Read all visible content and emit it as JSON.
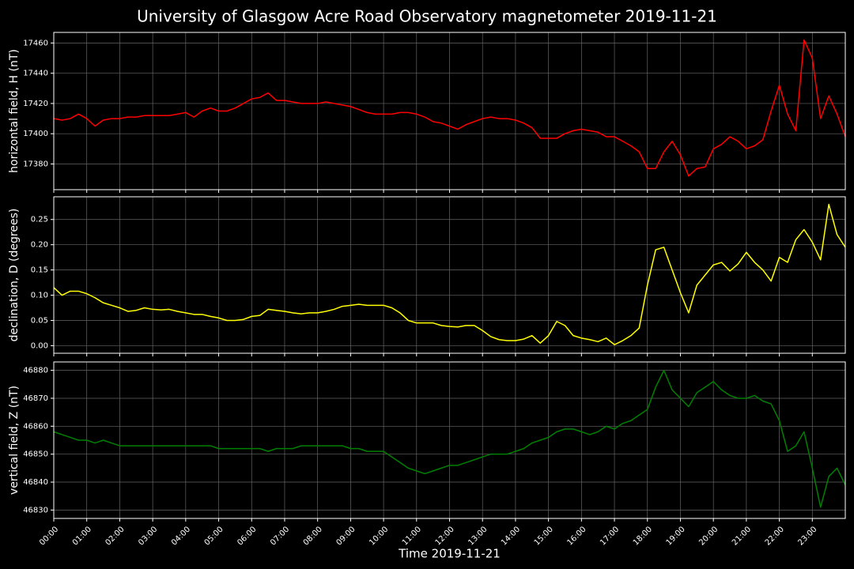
{
  "chart_data": [
    {
      "type": "line",
      "title": "University of Glasgow Acre Road Observatory magnetometer 2019-11-21",
      "ylabel": "horizontal field, H (nT)",
      "color": "#ff0000",
      "grid": true,
      "x": [
        0,
        0.25,
        0.5,
        0.75,
        1,
        1.25,
        1.5,
        1.75,
        2,
        2.25,
        2.5,
        2.75,
        3,
        3.25,
        3.5,
        3.75,
        4,
        4.25,
        4.5,
        4.75,
        5,
        5.25,
        5.5,
        5.75,
        6,
        6.25,
        6.5,
        6.75,
        7,
        7.25,
        7.5,
        7.75,
        8,
        8.25,
        8.5,
        8.75,
        9,
        9.25,
        9.5,
        9.75,
        10,
        10.25,
        10.5,
        10.75,
        11,
        11.25,
        11.5,
        11.75,
        12,
        12.25,
        12.5,
        12.75,
        13,
        13.25,
        13.5,
        13.75,
        14,
        14.25,
        14.5,
        14.75,
        15,
        15.25,
        15.5,
        15.75,
        16,
        16.25,
        16.5,
        16.75,
        17,
        17.25,
        17.5,
        17.75,
        18,
        18.25,
        18.5,
        18.75,
        19,
        19.25,
        19.5,
        19.75,
        20,
        20.25,
        20.5,
        20.75,
        21,
        21.25,
        21.5,
        21.75,
        22,
        22.25,
        22.5,
        22.75,
        23,
        23.25,
        23.5,
        23.75,
        24
      ],
      "values": [
        17410,
        17409,
        17410,
        17413,
        17410,
        17405,
        17409,
        17410,
        17410,
        17411,
        17411,
        17412,
        17412,
        17412,
        17412,
        17413,
        17414,
        17411,
        17415,
        17417,
        17415,
        17415,
        17417,
        17420,
        17423,
        17424,
        17427,
        17422,
        17422,
        17421,
        17420,
        17420,
        17420,
        17421,
        17420,
        17419,
        17418,
        17416,
        17414,
        17413,
        17413,
        17413,
        17414,
        17414,
        17413,
        17411,
        17408,
        17407,
        17405,
        17403,
        17406,
        17408,
        17410,
        17411,
        17410,
        17410,
        17409,
        17407,
        17404,
        17397,
        17397,
        17397,
        17400,
        17402,
        17403,
        17402,
        17401,
        17398,
        17398,
        17395,
        17392,
        17388,
        17377,
        17377,
        17388,
        17395,
        17386,
        17372,
        17377,
        17378,
        17390,
        17393,
        17398,
        17395,
        17390,
        17392,
        17396,
        17415,
        17432,
        17413,
        17402,
        17462,
        17450,
        17410,
        17425,
        17413,
        17398
      ],
      "xlim": [
        0,
        24
      ],
      "xticks": [
        0,
        1,
        2,
        3,
        4,
        5,
        6,
        7,
        8,
        9,
        10,
        11,
        12,
        13,
        14,
        15,
        16,
        17,
        18,
        19,
        20,
        21,
        22,
        23
      ],
      "ylim": [
        17363,
        17467
      ],
      "yticks": [
        17380,
        17400,
        17420,
        17440,
        17460
      ]
    },
    {
      "type": "line",
      "ylabel": "declination, D (degrees)",
      "color": "#ffff00",
      "grid": true,
      "x": [
        0,
        0.25,
        0.5,
        0.75,
        1,
        1.25,
        1.5,
        1.75,
        2,
        2.25,
        2.5,
        2.75,
        3,
        3.25,
        3.5,
        3.75,
        4,
        4.25,
        4.5,
        4.75,
        5,
        5.25,
        5.5,
        5.75,
        6,
        6.25,
        6.5,
        6.75,
        7,
        7.25,
        7.5,
        7.75,
        8,
        8.25,
        8.5,
        8.75,
        9,
        9.25,
        9.5,
        9.75,
        10,
        10.25,
        10.5,
        10.75,
        11,
        11.25,
        11.5,
        11.75,
        12,
        12.25,
        12.5,
        12.75,
        13,
        13.25,
        13.5,
        13.75,
        14,
        14.25,
        14.5,
        14.75,
        15,
        15.25,
        15.5,
        15.75,
        16,
        16.25,
        16.5,
        16.75,
        17,
        17.25,
        17.5,
        17.75,
        18,
        18.25,
        18.5,
        18.75,
        19,
        19.25,
        19.5,
        19.75,
        20,
        20.25,
        20.5,
        20.75,
        21,
        21.25,
        21.5,
        21.75,
        22,
        22.25,
        22.5,
        22.75,
        23,
        23.25,
        23.5,
        23.75,
        24
      ],
      "values": [
        0.115,
        0.1,
        0.108,
        0.108,
        0.103,
        0.095,
        0.085,
        0.08,
        0.075,
        0.068,
        0.07,
        0.075,
        0.072,
        0.071,
        0.072,
        0.068,
        0.065,
        0.062,
        0.062,
        0.058,
        0.055,
        0.05,
        0.05,
        0.052,
        0.058,
        0.06,
        0.072,
        0.07,
        0.068,
        0.065,
        0.063,
        0.065,
        0.065,
        0.068,
        0.072,
        0.078,
        0.08,
        0.082,
        0.08,
        0.08,
        0.08,
        0.075,
        0.065,
        0.05,
        0.045,
        0.045,
        0.045,
        0.04,
        0.038,
        0.037,
        0.04,
        0.04,
        0.03,
        0.018,
        0.012,
        0.01,
        0.01,
        0.013,
        0.02,
        0.005,
        0.02,
        0.048,
        0.04,
        0.02,
        0.015,
        0.012,
        0.008,
        0.015,
        0.002,
        0.01,
        0.02,
        0.035,
        0.12,
        0.19,
        0.195,
        0.15,
        0.105,
        0.065,
        0.12,
        0.14,
        0.16,
        0.165,
        0.148,
        0.162,
        0.185,
        0.165,
        0.15,
        0.128,
        0.175,
        0.165,
        0.21,
        0.23,
        0.205,
        0.17,
        0.28,
        0.22,
        0.195
      ],
      "xlim": [
        0,
        24
      ],
      "xticks": [
        0,
        1,
        2,
        3,
        4,
        5,
        6,
        7,
        8,
        9,
        10,
        11,
        12,
        13,
        14,
        15,
        16,
        17,
        18,
        19,
        20,
        21,
        22,
        23
      ],
      "ylim": [
        -0.015,
        0.295
      ],
      "yticks": [
        {
          "value": 0,
          "label": "0.00"
        },
        {
          "value": 0.05,
          "label": "0.05"
        },
        {
          "value": 0.1,
          "label": "0.10"
        },
        {
          "value": 0.15,
          "label": "0.15"
        },
        {
          "value": 0.2,
          "label": "0.20"
        },
        {
          "value": 0.25,
          "label": "0.25"
        }
      ]
    },
    {
      "type": "line",
      "ylabel": "vertical field, Z (nT)",
      "xlabel": "Time 2019-11-21",
      "color": "#008000",
      "grid": true,
      "x": [
        0,
        0.25,
        0.5,
        0.75,
        1,
        1.25,
        1.5,
        1.75,
        2,
        2.25,
        2.5,
        2.75,
        3,
        3.25,
        3.5,
        3.75,
        4,
        4.25,
        4.5,
        4.75,
        5,
        5.25,
        5.5,
        5.75,
        6,
        6.25,
        6.5,
        6.75,
        7,
        7.25,
        7.5,
        7.75,
        8,
        8.25,
        8.5,
        8.75,
        9,
        9.25,
        9.5,
        9.75,
        10,
        10.25,
        10.5,
        10.75,
        11,
        11.25,
        11.5,
        11.75,
        12,
        12.25,
        12.5,
        12.75,
        13,
        13.25,
        13.5,
        13.75,
        14,
        14.25,
        14.5,
        14.75,
        15,
        15.25,
        15.5,
        15.75,
        16,
        16.25,
        16.5,
        16.75,
        17,
        17.25,
        17.5,
        17.75,
        18,
        18.25,
        18.5,
        18.75,
        19,
        19.25,
        19.5,
        19.75,
        20,
        20.25,
        20.5,
        20.75,
        21,
        21.25,
        21.5,
        21.75,
        22,
        22.25,
        22.5,
        22.75,
        23,
        23.25,
        23.5,
        23.75,
        24
      ],
      "values": [
        46858,
        46857,
        46856,
        46855,
        46855,
        46854,
        46855,
        46854,
        46853,
        46853,
        46853,
        46853,
        46853,
        46853,
        46853,
        46853,
        46853,
        46853,
        46853,
        46853,
        46852,
        46852,
        46852,
        46852,
        46852,
        46852,
        46851,
        46852,
        46852,
        46852,
        46853,
        46853,
        46853,
        46853,
        46853,
        46853,
        46852,
        46852,
        46851,
        46851,
        46851,
        46849,
        46847,
        46845,
        46844,
        46843,
        46844,
        46845,
        46846,
        46846,
        46847,
        46848,
        46849,
        46850,
        46850,
        46850,
        46851,
        46852,
        46854,
        46855,
        46856,
        46858,
        46859,
        46859,
        46858,
        46857,
        46858,
        46860,
        46859,
        46861,
        46862,
        46864,
        46866,
        46874,
        46880,
        46873,
        46870,
        46867,
        46872,
        46874,
        46876,
        46873,
        46871,
        46870,
        46870,
        46871,
        46869,
        46868,
        46862,
        46851,
        46853,
        46858,
        46845,
        46831,
        46842,
        46845,
        46839
      ],
      "xlim": [
        0,
        24
      ],
      "xticks": [
        {
          "value": 0,
          "label": "00:00"
        },
        {
          "value": 1,
          "label": "01:00"
        },
        {
          "value": 2,
          "label": "02:00"
        },
        {
          "value": 3,
          "label": "03:00"
        },
        {
          "value": 4,
          "label": "04:00"
        },
        {
          "value": 5,
          "label": "05:00"
        },
        {
          "value": 6,
          "label": "06:00"
        },
        {
          "value": 7,
          "label": "07:00"
        },
        {
          "value": 8,
          "label": "08:00"
        },
        {
          "value": 9,
          "label": "09:00"
        },
        {
          "value": 10,
          "label": "10:00"
        },
        {
          "value": 11,
          "label": "11:00"
        },
        {
          "value": 12,
          "label": "12:00"
        },
        {
          "value": 13,
          "label": "13:00"
        },
        {
          "value": 14,
          "label": "14:00"
        },
        {
          "value": 15,
          "label": "15:00"
        },
        {
          "value": 16,
          "label": "16:00"
        },
        {
          "value": 17,
          "label": "17:00"
        },
        {
          "value": 18,
          "label": "18:00"
        },
        {
          "value": 19,
          "label": "19:00"
        },
        {
          "value": 20,
          "label": "20:00"
        },
        {
          "value": 21,
          "label": "21:00"
        },
        {
          "value": 22,
          "label": "22:00"
        },
        {
          "value": 23,
          "label": "23:00"
        }
      ],
      "ylim": [
        46827,
        46883
      ],
      "yticks": [
        46830,
        46840,
        46850,
        46860,
        46870,
        46880
      ]
    }
  ]
}
